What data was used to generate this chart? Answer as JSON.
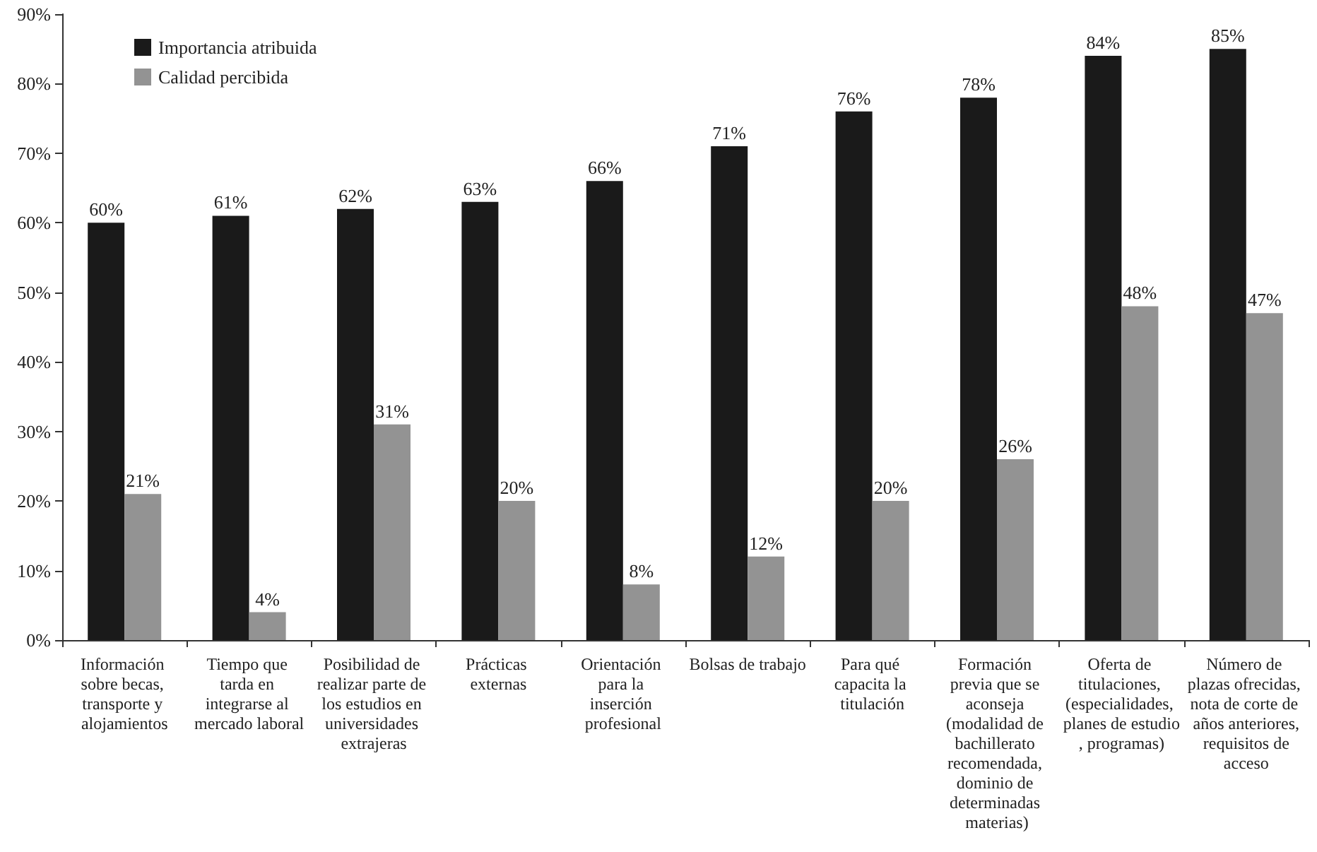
{
  "chart_data": {
    "type": "bar",
    "categories": [
      "Información sobre becas, transporte y alojamientos",
      "Tiempo que tarda en integrarse al mercado laboral",
      "Posibilidad de realizar parte de los estudios en universidades extrajeras",
      "Prácticas externas",
      "Orientación para la inserción profesional",
      "Bolsas de trabajo",
      "Para qué capacita la titulación",
      "Formación previa que se aconseja (modalidad de bachillerato recomendada, dominio de determinadas materias)",
      "Oferta de titulaciones, (especialidades, planes de estudio, programas)",
      "Número de plazas ofrecidas, nota de corte de años anteriores, requisitos de acceso"
    ],
    "series": [
      {
        "name": "Importancia atribuida",
        "color": "#1a1a1a",
        "values": [
          60,
          61,
          62,
          63,
          66,
          71,
          76,
          78,
          84,
          85
        ],
        "value_labels": [
          "60%",
          "61%",
          "62%",
          "63%",
          "66%",
          "71%",
          "76%",
          "78%",
          "84%",
          "85%"
        ]
      },
      {
        "name": "Calidad percibida",
        "color": "#939393",
        "values": [
          21,
          4,
          31,
          20,
          8,
          12,
          20,
          26,
          48,
          47
        ],
        "value_labels": [
          "21%",
          "4%",
          "31%",
          "20%",
          "8%",
          "12%",
          "20%",
          "26%",
          "48%",
          "47%"
        ]
      }
    ],
    "ylim": [
      0,
      90
    ],
    "yticks": [
      {
        "value": 0,
        "label": "0%"
      },
      {
        "value": 10,
        "label": "10%"
      },
      {
        "value": 20,
        "label": "20%"
      },
      {
        "value": 30,
        "label": "30%"
      },
      {
        "value": 40,
        "label": "40%"
      },
      {
        "value": 50,
        "label": "50%"
      },
      {
        "value": 60,
        "label": "60%"
      },
      {
        "value": 70,
        "label": "70%"
      },
      {
        "value": 80,
        "label": "80%"
      },
      {
        "value": 90,
        "label": "90%"
      }
    ],
    "grid": false,
    "legend": "top left"
  }
}
